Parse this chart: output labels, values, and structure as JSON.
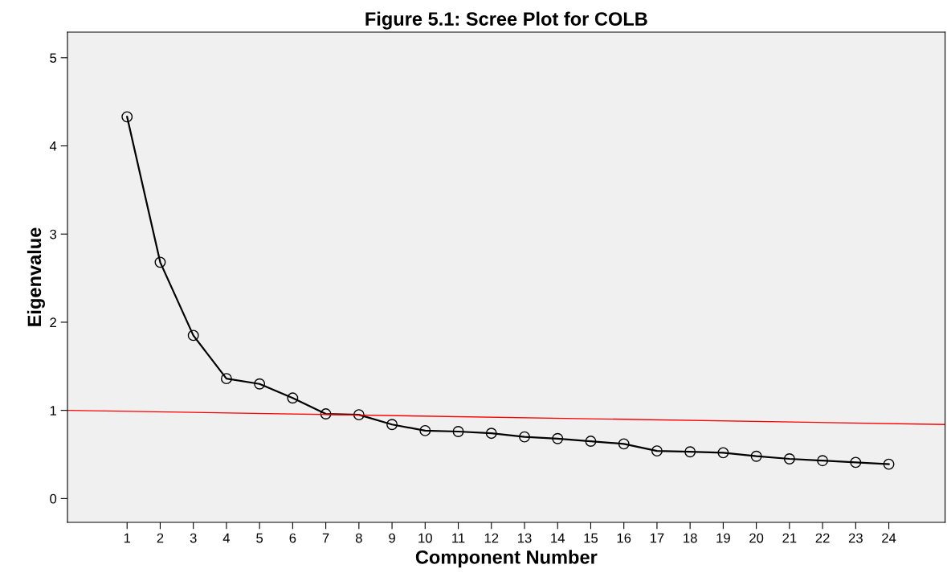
{
  "chart_data": {
    "type": "line",
    "title": "Figure 5.1: Scree Plot for COLB",
    "xlabel": "Component Number",
    "ylabel": "Eigenvalue",
    "x": [
      1,
      2,
      3,
      4,
      5,
      6,
      7,
      8,
      9,
      10,
      11,
      12,
      13,
      14,
      15,
      16,
      17,
      18,
      19,
      20,
      21,
      22,
      23,
      24
    ],
    "series": [
      {
        "color": "#000000",
        "marker": "circle",
        "values": [
          4.33,
          2.68,
          1.85,
          1.36,
          1.3,
          1.14,
          0.96,
          0.95,
          0.84,
          0.77,
          0.76,
          0.74,
          0.7,
          0.68,
          0.65,
          0.62,
          0.54,
          0.53,
          0.52,
          0.48,
          0.45,
          0.43,
          0.41,
          0.39
        ]
      },
      {
        "type": "line",
        "color": "#ff0000",
        "marker": "none",
        "x": [
          -0.8,
          25.7
        ],
        "values": [
          1.0,
          0.84
        ]
      }
    ],
    "xlim": [
      -0.8,
      25.7
    ],
    "xticks": [
      1,
      2,
      3,
      4,
      5,
      6,
      7,
      8,
      9,
      10,
      11,
      12,
      13,
      14,
      15,
      16,
      17,
      18,
      19,
      20,
      21,
      22,
      23,
      24
    ],
    "ylim": [
      -0.27,
      5.29
    ],
    "yticks": [
      0,
      1,
      2,
      3,
      4,
      5
    ],
    "grid": false
  }
}
